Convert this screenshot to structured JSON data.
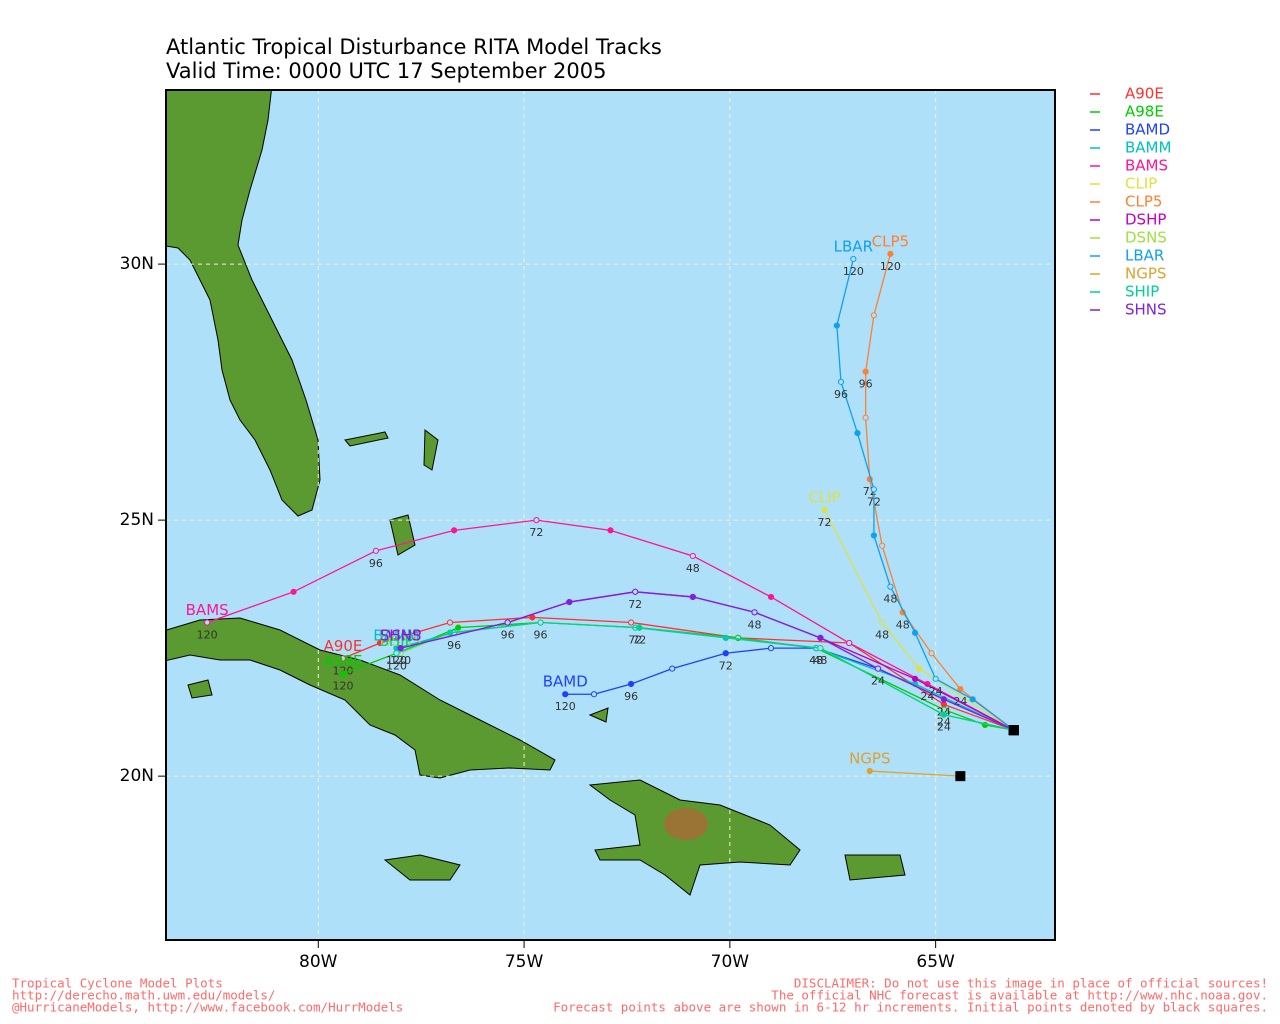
{
  "chart_data": {
    "type": "track-map",
    "title": "Atlantic Tropical Disturbance RITA Model Tracks",
    "subtitle": "Valid Time: 0000 UTC 17 September 2005",
    "xlim": [
      -83.7,
      -62.1
    ],
    "ylim": [
      16.8,
      33.4
    ],
    "xticks": [
      {
        "value": -80,
        "label": "80W"
      },
      {
        "value": -75,
        "label": "75W"
      },
      {
        "value": -70,
        "label": "70W"
      },
      {
        "value": -65,
        "label": "65W"
      }
    ],
    "yticks": [
      {
        "value": 20,
        "label": "20N"
      },
      {
        "value": 25,
        "label": "25N"
      },
      {
        "value": 30,
        "label": "30N"
      }
    ],
    "grid": true,
    "legend": "right",
    "series": [
      {
        "name": "A90E",
        "color": "#ff3030",
        "x": [
          -63.1,
          -64.8,
          -67.1,
          -69.8,
          -72.4,
          -74.8,
          -76.8,
          -78.5,
          -79.4
        ],
        "y": [
          20.9,
          21.4,
          22.6,
          22.7,
          23.0,
          23.1,
          23.0,
          22.6,
          22.3
        ],
        "point_labels": [
          null,
          null,
          null,
          null,
          null,
          null,
          null,
          null,
          "120"
        ]
      },
      {
        "name": "A98E",
        "color": "#00cc00",
        "x": [
          -63.1,
          -63.8,
          -64.8,
          -67.9,
          -69.8,
          -72.2,
          -74.6,
          -76.6,
          -78.1,
          -79.4
        ],
        "y": [
          20.9,
          21.0,
          21.3,
          22.5,
          22.7,
          22.9,
          23.0,
          22.9,
          22.4,
          22.0
        ],
        "point_labels": [
          null,
          null,
          "24",
          null,
          null,
          null,
          null,
          null,
          null,
          "120"
        ]
      },
      {
        "name": "BAMD",
        "color": "#2040ff",
        "x": [
          -63.1,
          -64.8,
          -66.4,
          -67.9,
          -69.0,
          -70.1,
          -71.4,
          -72.4,
          -73.3,
          -74.0
        ],
        "y": [
          20.9,
          21.5,
          22.1,
          22.5,
          22.5,
          22.4,
          22.1,
          21.8,
          21.6,
          21.6
        ],
        "point_labels": [
          null,
          "24",
          null,
          "48",
          null,
          "72",
          null,
          "96",
          null,
          "120"
        ]
      },
      {
        "name": "BAMM",
        "color": "#00c0c0",
        "x": [
          -63.1,
          -65.5,
          -67.9,
          -70.1,
          -72.3,
          -74.6,
          -76.7,
          -78.1
        ],
        "y": [
          20.9,
          21.8,
          22.5,
          22.7,
          22.9,
          23.0,
          22.8,
          22.5
        ],
        "point_labels": [
          null,
          null,
          "48",
          null,
          "72",
          null,
          "96",
          "120"
        ]
      },
      {
        "name": "BAMS",
        "color": "#ff1493",
        "x": [
          -63.1,
          -65.2,
          -67.1,
          -69.0,
          -70.9,
          -72.9,
          -74.7,
          -76.7,
          -78.6,
          -80.6,
          -82.7
        ],
        "y": [
          20.9,
          21.8,
          22.6,
          23.5,
          24.3,
          24.8,
          25.0,
          24.8,
          24.4,
          23.6,
          23.0
        ],
        "point_labels": [
          null,
          "24",
          null,
          null,
          "48",
          null,
          "72",
          null,
          "96",
          null,
          "120"
        ]
      },
      {
        "name": "CLIP",
        "color": "#e0e040",
        "x": [
          -63.1,
          -65.4,
          -66.3,
          -67.7
        ],
        "y": [
          20.9,
          22.1,
          23.0,
          25.2
        ],
        "point_labels": [
          null,
          null,
          "48",
          "72"
        ]
      },
      {
        "name": "CLP5",
        "color": "#ff8030",
        "x": [
          -63.1,
          -64.4,
          -65.1,
          -65.8,
          -66.3,
          -66.6,
          -66.7,
          -66.7,
          -66.5,
          -66.1
        ],
        "y": [
          20.9,
          21.7,
          22.4,
          23.2,
          24.5,
          25.8,
          27.0,
          27.9,
          29.0,
          30.2
        ],
        "point_labels": [
          null,
          "24",
          null,
          "48",
          null,
          "72",
          null,
          "96",
          null,
          "120"
        ]
      },
      {
        "name": "DSHP",
        "color": "#c000c0",
        "x": [
          -63.1,
          -65.5,
          -67.8,
          -69.4,
          -70.9,
          -72.3,
          -73.9,
          -75.4,
          -78.0
        ],
        "y": [
          20.9,
          21.9,
          22.7,
          23.2,
          23.5,
          23.6,
          23.4,
          23.0,
          22.5
        ],
        "point_labels": [
          null,
          null,
          null,
          null,
          null,
          null,
          null,
          null,
          null
        ]
      },
      {
        "name": "DSNS",
        "color": "#a0e040",
        "x": [
          -63.1,
          -64.8,
          -67.8,
          -72.2,
          -74.6,
          -76.8,
          -78.0
        ],
        "y": [
          20.9,
          21.2,
          22.5,
          22.9,
          23.0,
          22.8,
          22.4
        ],
        "point_labels": [
          null,
          null,
          null,
          null,
          null,
          null,
          null
        ]
      },
      {
        "name": "LBAR",
        "color": "#10a0f0",
        "x": [
          -63.1,
          -64.1,
          -65.0,
          -65.5,
          -66.1,
          -66.5,
          -66.5,
          -66.9,
          -67.3,
          -67.4,
          -67.0
        ],
        "y": [
          20.9,
          21.5,
          21.9,
          22.8,
          23.7,
          24.7,
          25.6,
          26.7,
          27.7,
          28.8,
          30.1
        ],
        "point_labels": [
          null,
          null,
          "24",
          null,
          "48",
          null,
          "72",
          null,
          "96",
          null,
          "120"
        ]
      },
      {
        "name": "NGPS",
        "color": "#e0a030",
        "x": [
          -64.4,
          -66.6
        ],
        "y": [
          20.0,
          20.1
        ],
        "point_labels": [
          null,
          null
        ]
      },
      {
        "name": "SHIP",
        "color": "#00d090",
        "x": [
          -63.1,
          -64.8,
          -67.8,
          -72.2,
          -74.6,
          -76.8,
          -78.1
        ],
        "y": [
          20.9,
          21.2,
          22.5,
          22.9,
          23.0,
          22.8,
          22.4
        ],
        "point_labels": [
          null,
          "24",
          "48",
          "72",
          "96",
          null,
          "120"
        ]
      },
      {
        "name": "SHNS",
        "color": "#8020e0",
        "x": [
          -63.1,
          -64.8,
          -66.4,
          -67.8,
          -69.4,
          -70.9,
          -72.3,
          -73.9,
          -75.4,
          -78.0
        ],
        "y": [
          20.9,
          21.5,
          22.1,
          22.7,
          23.2,
          23.5,
          23.6,
          23.4,
          23.0,
          22.5
        ],
        "point_labels": [
          null,
          null,
          "24",
          null,
          "48",
          null,
          "72",
          null,
          "96",
          "120"
        ]
      }
    ],
    "footer_left": [
      "Tropical Cyclone Model Plots",
      "http://derecho.math.uwm.edu/models/",
      "@HurricaneModels, http://www.facebook.com/HurrModels"
    ],
    "footer_right": [
      "DISCLAIMER: Do not use this image in place of official sources!",
      "The official NHC forecast is available at http://www.nhc.noaa.gov.",
      "Forecast points above are shown in 6-12 hr increments. Initial points denoted by black squares."
    ]
  }
}
